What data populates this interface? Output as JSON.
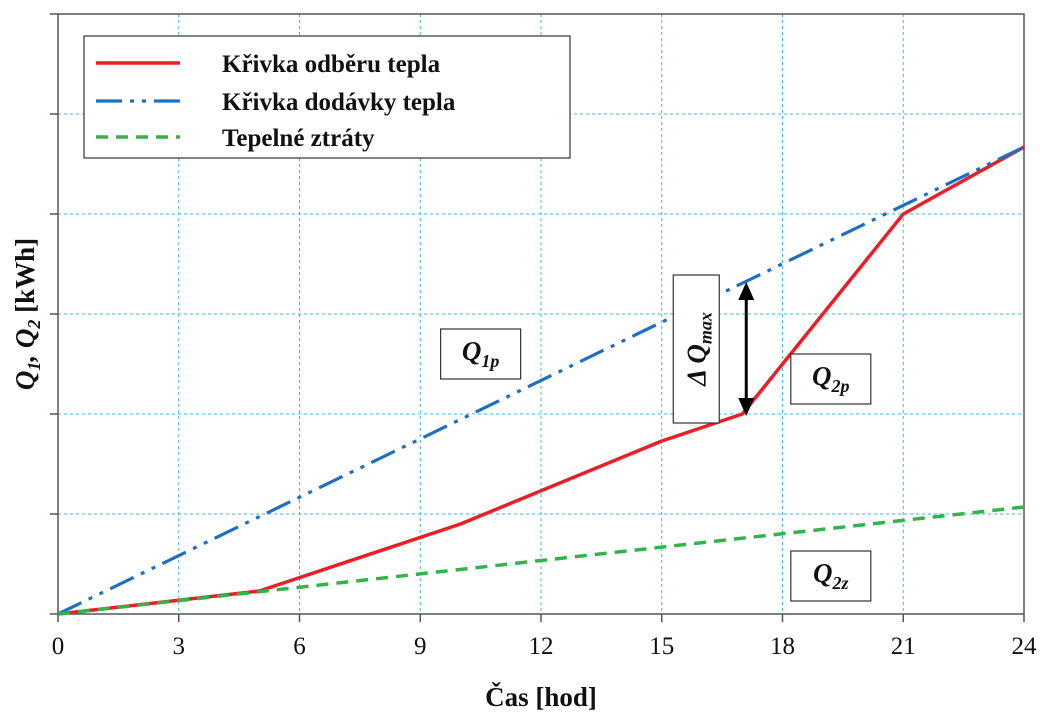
{
  "chart_data": {
    "type": "line",
    "xlabel": "Čas [hod]",
    "ylabel": "Q1, Q2 [kWh]",
    "xlim": [
      0,
      24
    ],
    "ylim": [
      0,
      6
    ],
    "x_ticks": [
      "0",
      "3",
      "6",
      "9",
      "12",
      "15",
      "18",
      "21",
      "24"
    ],
    "y_tick_count": 7,
    "y_tick_labels_shown": false,
    "grid": true,
    "grid_color": "#3fb7e6",
    "legend_position": "top-left",
    "series": [
      {
        "name": "Křivka odběru tepla",
        "style": "solid",
        "color": "#ee1c25",
        "x": [
          0,
          5,
          10,
          15,
          17,
          21,
          24
        ],
        "y": [
          0,
          0.23,
          0.9,
          1.73,
          2.0,
          4.0,
          4.67
        ]
      },
      {
        "name": "Křivka dodávky tepla",
        "style": "dash-dot-dot",
        "color": "#1f6fc0",
        "x": [
          0,
          24
        ],
        "y": [
          0,
          4.67
        ]
      },
      {
        "name": "Tepelné ztráty",
        "style": "dashed",
        "color": "#33b34a",
        "x": [
          0,
          24
        ],
        "y": [
          0,
          1.07
        ]
      }
    ],
    "annotations": [
      {
        "id": "q1p",
        "main": "Q",
        "sub": "1p",
        "x": 10.5,
        "y": 2.6
      },
      {
        "id": "q2p",
        "main": "Q",
        "sub": "2p",
        "x": 19.2,
        "y": 2.35
      },
      {
        "id": "q2z",
        "main": "Q",
        "sub": "2z",
        "x": 19.2,
        "y": 0.38
      },
      {
        "id": "dq",
        "main": "Δ Q",
        "sub": "max",
        "x": 17,
        "y_from": 2.0,
        "y_to": 3.3
      }
    ]
  }
}
